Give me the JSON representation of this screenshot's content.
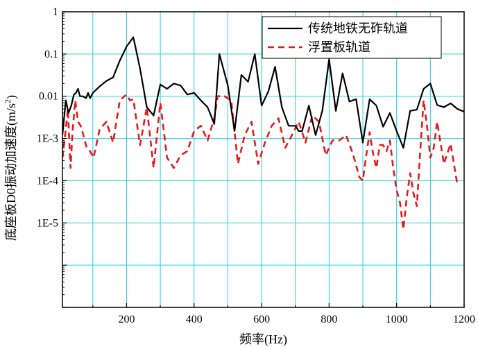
{
  "chart_data": {
    "type": "line",
    "xlabel": "频率(Hz)",
    "ylabel_main": "底座板D0振动加速度",
    "ylabel_unit_base": "(m/s",
    "ylabel_unit_exp": "2",
    "ylabel_unit_close": ")",
    "xlim": [
      10,
      1200
    ],
    "ylim": [
      1e-07,
      1
    ],
    "y_scale": "log",
    "grid": true,
    "grid_color": "#22d3e6",
    "legend_position": "top-right",
    "x_ticks": [
      200,
      400,
      600,
      800,
      1000,
      1200
    ],
    "x_tick_labels": [
      "200",
      "400",
      "600",
      "800",
      "1000",
      "1200"
    ],
    "y_ticks": [
      1,
      0.1,
      0.01,
      0.001,
      0.0001,
      1e-05
    ],
    "y_tick_labels": [
      "1",
      "0.1",
      "0.01",
      "1E-3",
      "1E-4",
      "1E-5"
    ],
    "series": [
      {
        "name": "传统地铁无砟轨道",
        "color": "#000000",
        "dash": "solid",
        "x": [
          10,
          20,
          28,
          36,
          44,
          50,
          56,
          62,
          70,
          80,
          86,
          92,
          100,
          120,
          140,
          160,
          180,
          200,
          220,
          240,
          260,
          280,
          300,
          320,
          340,
          360,
          380,
          400,
          420,
          440,
          460,
          475,
          500,
          520,
          540,
          560,
          580,
          600,
          620,
          640,
          660,
          680,
          700,
          710,
          720,
          740,
          760,
          780,
          800,
          820,
          840,
          860,
          880,
          900,
          920,
          940,
          960,
          980,
          1000,
          1020,
          1040,
          1060,
          1080,
          1100,
          1120,
          1140,
          1160,
          1180,
          1200
        ],
        "y": [
          0.0012,
          0.008,
          0.004,
          0.006,
          0.011,
          0.012,
          0.015,
          0.01,
          0.01,
          0.009,
          0.012,
          0.009,
          0.012,
          0.017,
          0.023,
          0.028,
          0.07,
          0.15,
          0.25,
          0.045,
          0.0055,
          0.0035,
          0.019,
          0.015,
          0.02,
          0.018,
          0.011,
          0.012,
          0.008,
          0.0055,
          0.0022,
          0.1,
          0.018,
          0.0015,
          0.032,
          0.022,
          0.1,
          0.006,
          0.013,
          0.05,
          0.0055,
          0.002,
          0.002,
          0.0015,
          0.0015,
          0.006,
          0.0012,
          0.0045,
          0.075,
          0.0045,
          0.035,
          0.0075,
          0.0085,
          0.0008,
          0.0085,
          0.006,
          0.0019,
          0.004,
          0.0015,
          0.0006,
          0.0045,
          0.0048,
          0.015,
          0.02,
          0.0062,
          0.0055,
          0.0068,
          0.005,
          0.0043
        ]
      },
      {
        "name": "浮置板轨道",
        "color": "#e8191a",
        "dash": "dashed",
        "x": [
          10,
          18,
          26,
          34,
          40,
          48,
          56,
          64,
          72,
          82,
          92,
          102,
          120,
          140,
          160,
          180,
          200,
          210,
          220,
          240,
          260,
          280,
          300,
          320,
          340,
          360,
          380,
          400,
          420,
          440,
          460,
          470,
          490,
          510,
          530,
          550,
          570,
          590,
          610,
          630,
          650,
          670,
          690,
          710,
          730,
          750,
          770,
          790,
          810,
          830,
          850,
          870,
          890,
          900,
          910,
          920,
          930,
          940,
          950,
          960,
          970,
          980,
          990,
          1000,
          1010,
          1020,
          1030,
          1040,
          1050,
          1060,
          1070,
          1080,
          1090,
          1100,
          1110,
          1120,
          1140,
          1160,
          1180
        ],
        "y": [
          0.00035,
          0.0012,
          0.005,
          0.0002,
          0.0015,
          0.008,
          0.0025,
          0.002,
          0.0012,
          0.0006,
          0.0005,
          0.00035,
          0.0016,
          0.0025,
          0.0008,
          0.008,
          0.011,
          0.008,
          0.0085,
          0.0007,
          0.0055,
          0.0002,
          0.007,
          0.00035,
          0.0002,
          0.0004,
          0.0005,
          0.0015,
          0.002,
          0.0009,
          0.003,
          0.01,
          0.01,
          0.008,
          0.00025,
          0.0012,
          0.0025,
          0.00025,
          0.0008,
          0.002,
          0.003,
          0.0006,
          0.0012,
          0.0025,
          0.0008,
          0.0035,
          0.0025,
          0.0004,
          0.0009,
          0.0009,
          0.0012,
          0.00045,
          0.00012,
          0.0001,
          0.0004,
          0.0014,
          0.00045,
          0.0002,
          0.0007,
          0.0007,
          0.0005,
          0.0009,
          0.0002,
          6e-05,
          3e-05,
          7e-06,
          4e-05,
          0.00015,
          5e-05,
          2.5e-05,
          0.0005,
          0.008,
          0.002,
          0.00035,
          0.0006,
          0.0025,
          0.00025,
          0.00075,
          8e-05
        ]
      }
    ]
  }
}
